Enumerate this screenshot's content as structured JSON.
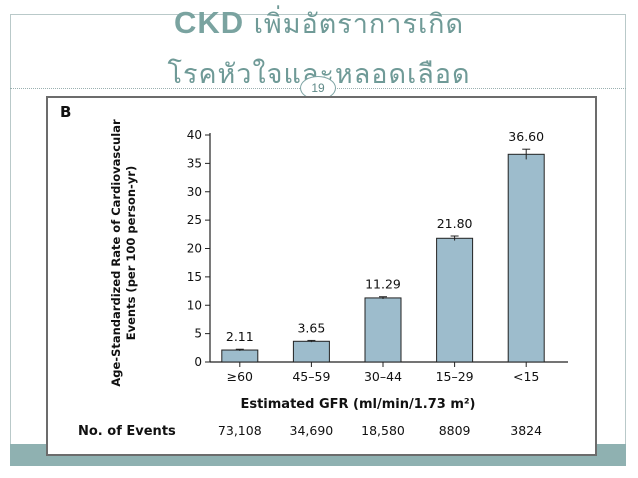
{
  "slide": {
    "title_line1_a": "CKD",
    "title_line1_b": " เพิ่มอัตราการเกิด",
    "title_line2": "โรคหัวใจและหลอดเลือด",
    "page_number": "19"
  },
  "chart_data": {
    "type": "bar",
    "panel_label": "B",
    "ylabel_line1": "Age-Standardized Rate of Cardiovascular",
    "ylabel_line2": "Events (per 100 person-yr)",
    "xlabel": "Estimated GFR (ml/min/1.73 m²)",
    "ylim": [
      0,
      40
    ],
    "yticks": [
      0,
      5,
      10,
      15,
      20,
      25,
      30,
      35,
      40
    ],
    "categories": [
      "≥60",
      "45–59",
      "30–44",
      "15–29",
      "<15"
    ],
    "values": [
      2.11,
      3.65,
      11.29,
      21.8,
      36.6
    ],
    "value_labels": [
      "2.11",
      "3.65",
      "11.29",
      "21.80",
      "36.60"
    ],
    "error_low": [
      1.95,
      3.5,
      11.1,
      21.4,
      35.7
    ],
    "error_high": [
      2.25,
      3.8,
      11.5,
      22.2,
      37.5
    ],
    "bar_color": "#9dbccc",
    "events_label": "No. of Events",
    "events": [
      "73,108",
      "34,690",
      "18,580",
      "8809",
      "3824"
    ]
  }
}
